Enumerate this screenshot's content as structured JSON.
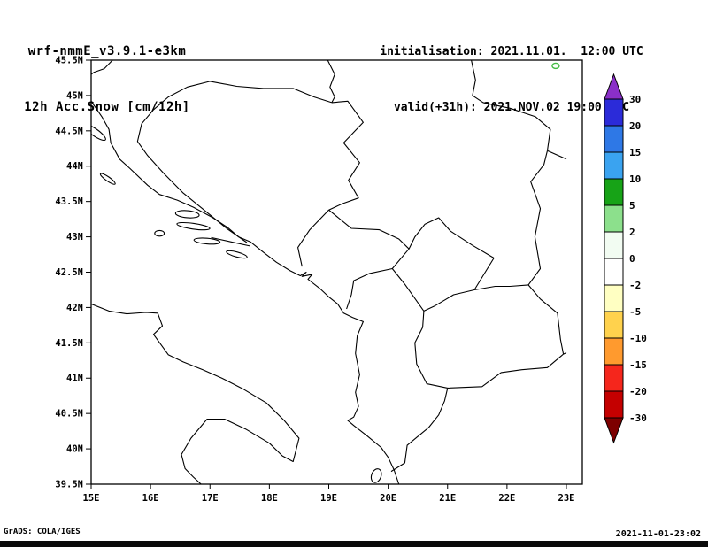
{
  "header": {
    "model_line": "wrf-nmmE_v3.9.1-e3km",
    "product_line": "12h Acc.Snow [cm/12h]",
    "init_line": "initialisation: 2021.11.01.  12:00 UTC",
    "valid_line": "valid(+31h): 2021.NOV.02 19:00 UTC"
  },
  "footer": {
    "credit": "GrADS: COLA/IGES",
    "generated": "2021-11-01-23:02"
  },
  "chart_data": {
    "type": "map",
    "field": "12h accumulated snow [cm/12h]",
    "extent": {
      "lon_min": 15,
      "lon_max": 23,
      "lat_min": 39.5,
      "lat_max": 45.5
    },
    "x_tick_labels": [
      "15E",
      "16E",
      "17E",
      "18E",
      "19E",
      "20E",
      "21E",
      "22E",
      "23E"
    ],
    "y_tick_labels": [
      "45.5N",
      "45N",
      "44.5N",
      "44N",
      "43.5N",
      "43N",
      "42.5N",
      "42N",
      "41.5N",
      "41N",
      "40.5N",
      "40N",
      "39.5N"
    ],
    "grid": false,
    "outline_color": "#000000",
    "background_color": "#ffffff",
    "colorbar": {
      "position": "right",
      "boundary_labels": [
        "30",
        "20",
        "15",
        "10",
        "5",
        "2",
        "0",
        "-2",
        "-5",
        "-10",
        "-15",
        "-20",
        "-30"
      ],
      "segment_colors": [
        "#2b2bd9",
        "#2e78e6",
        "#3aa3f0",
        "#17a317",
        "#8ce08c",
        "#f2fcf2",
        "#ffffff",
        "#ffffc2",
        "#ffd24d",
        "#ff9a2e",
        "#f5261c",
        "#c40000"
      ],
      "arrow_top_color": "#8a2fc8",
      "arrow_bottom_color": "#7d0000",
      "outline_color": "#000000"
    },
    "snow_marks": [
      {
        "lon": 22.82,
        "lat": 45.42,
        "color": "#44bb44"
      }
    ]
  }
}
